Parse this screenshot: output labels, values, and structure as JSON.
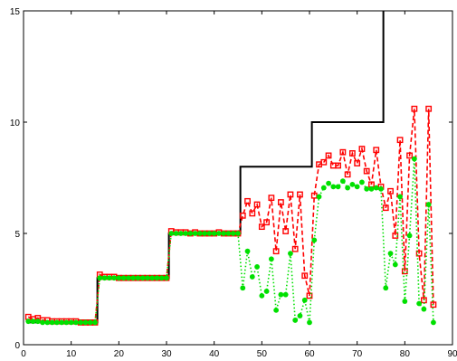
{
  "chart_data": {
    "type": "line",
    "title": "",
    "xlabel": "",
    "ylabel": "",
    "xlim": [
      0,
      90
    ],
    "ylim": [
      0,
      15
    ],
    "grid": false,
    "legend": "none",
    "x_ticks": [
      "0",
      "10",
      "20",
      "30",
      "40",
      "50",
      "60",
      "70",
      "80",
      "90"
    ],
    "y_ticks": [
      "0",
      "5",
      "10",
      "15"
    ],
    "series": [
      {
        "style": "solid",
        "color": "#000000",
        "marker": "none",
        "points": [
          [
            1,
            1
          ],
          [
            15.5,
            1
          ],
          [
            15.5,
            3
          ],
          [
            30.5,
            3
          ],
          [
            30.5,
            5
          ],
          [
            45.5,
            5
          ],
          [
            45.5,
            8
          ],
          [
            60.5,
            8
          ],
          [
            60.5,
            10
          ],
          [
            75.5,
            10
          ],
          [
            75.5,
            15
          ]
        ]
      },
      {
        "style": "dashed",
        "color": "#ff0000",
        "marker": "square",
        "points": [
          [
            1,
            1.25
          ],
          [
            2,
            1.15
          ],
          [
            3,
            1.2
          ],
          [
            4,
            1.1
          ],
          [
            5,
            1.1
          ],
          [
            6,
            1.05
          ],
          [
            7,
            1.05
          ],
          [
            8,
            1.05
          ],
          [
            9,
            1.05
          ],
          [
            10,
            1.05
          ],
          [
            11,
            1.05
          ],
          [
            12,
            1.0
          ],
          [
            13,
            1.0
          ],
          [
            14,
            1.0
          ],
          [
            15,
            1.0
          ],
          [
            16,
            3.15
          ],
          [
            17,
            3.05
          ],
          [
            18,
            3.05
          ],
          [
            19,
            3.05
          ],
          [
            20,
            3.0
          ],
          [
            21,
            3.0
          ],
          [
            22,
            3.0
          ],
          [
            23,
            3.0
          ],
          [
            24,
            3.0
          ],
          [
            25,
            3.0
          ],
          [
            26,
            3.0
          ],
          [
            27,
            3.0
          ],
          [
            28,
            3.0
          ],
          [
            29,
            3.0
          ],
          [
            30,
            3.0
          ],
          [
            31,
            5.1
          ],
          [
            32,
            5.05
          ],
          [
            33,
            5.05
          ],
          [
            34,
            5.05
          ],
          [
            35,
            5.0
          ],
          [
            36,
            5.05
          ],
          [
            37,
            5.0
          ],
          [
            38,
            5.0
          ],
          [
            39,
            5.0
          ],
          [
            40,
            5.0
          ],
          [
            41,
            5.05
          ],
          [
            42,
            5.0
          ],
          [
            43,
            5.0
          ],
          [
            44,
            5.0
          ],
          [
            45,
            5.0
          ],
          [
            46,
            5.8
          ],
          [
            47,
            6.45
          ],
          [
            48,
            5.9
          ],
          [
            49,
            6.3
          ],
          [
            50,
            5.3
          ],
          [
            51,
            5.5
          ],
          [
            52,
            6.6
          ],
          [
            53,
            4.2
          ],
          [
            54,
            6.4
          ],
          [
            55,
            5.1
          ],
          [
            56,
            6.75
          ],
          [
            57,
            4.3
          ],
          [
            58,
            6.75
          ],
          [
            59,
            3.1
          ],
          [
            60,
            2.2
          ],
          [
            61,
            6.7
          ],
          [
            62,
            8.1
          ],
          [
            63,
            8.2
          ],
          [
            64,
            8.5
          ],
          [
            65,
            8.05
          ],
          [
            66,
            8.05
          ],
          [
            67,
            8.65
          ],
          [
            68,
            7.65
          ],
          [
            69,
            8.6
          ],
          [
            70,
            8.15
          ],
          [
            71,
            8.8
          ],
          [
            72,
            7.8
          ],
          [
            73,
            7.2
          ],
          [
            74,
            8.75
          ],
          [
            75,
            7.1
          ],
          [
            76,
            6.15
          ],
          [
            77,
            6.9
          ],
          [
            78,
            4.9
          ],
          [
            79,
            9.2
          ],
          [
            80,
            3.3
          ],
          [
            81,
            8.5
          ],
          [
            82,
            10.6
          ],
          [
            83,
            4.1
          ],
          [
            84,
            2.0
          ],
          [
            85,
            10.6
          ],
          [
            86,
            1.8
          ]
        ]
      },
      {
        "style": "dotted",
        "color": "#00e000",
        "marker": "circle",
        "points": [
          [
            1,
            1.05
          ],
          [
            2,
            1.05
          ],
          [
            3,
            1.05
          ],
          [
            4,
            1.0
          ],
          [
            5,
            1.0
          ],
          [
            6,
            1.0
          ],
          [
            7,
            1.0
          ],
          [
            8,
            1.0
          ],
          [
            9,
            1.0
          ],
          [
            10,
            1.0
          ],
          [
            11,
            1.0
          ],
          [
            12,
            1.0
          ],
          [
            13,
            1.0
          ],
          [
            14,
            1.0
          ],
          [
            15,
            1.0
          ],
          [
            16,
            3.0
          ],
          [
            17,
            3.0
          ],
          [
            18,
            3.0
          ],
          [
            19,
            3.0
          ],
          [
            20,
            3.0
          ],
          [
            21,
            3.0
          ],
          [
            22,
            3.0
          ],
          [
            23,
            3.0
          ],
          [
            24,
            3.0
          ],
          [
            25,
            3.0
          ],
          [
            26,
            3.0
          ],
          [
            27,
            3.0
          ],
          [
            28,
            3.0
          ],
          [
            29,
            3.0
          ],
          [
            30,
            3.0
          ],
          [
            31,
            5.0
          ],
          [
            32,
            5.0
          ],
          [
            33,
            5.0
          ],
          [
            34,
            5.0
          ],
          [
            35,
            5.0
          ],
          [
            36,
            5.0
          ],
          [
            37,
            5.0
          ],
          [
            38,
            5.0
          ],
          [
            39,
            5.0
          ],
          [
            40,
            5.0
          ],
          [
            41,
            5.0
          ],
          [
            42,
            5.0
          ],
          [
            43,
            5.0
          ],
          [
            44,
            5.0
          ],
          [
            45,
            5.0
          ],
          [
            46,
            2.55
          ],
          [
            47,
            4.2
          ],
          [
            48,
            3.05
          ],
          [
            49,
            3.5
          ],
          [
            50,
            2.2
          ],
          [
            51,
            2.4
          ],
          [
            52,
            3.85
          ],
          [
            53,
            1.55
          ],
          [
            54,
            2.25
          ],
          [
            55,
            2.25
          ],
          [
            56,
            4.1
          ],
          [
            57,
            1.1
          ],
          [
            58,
            1.3
          ],
          [
            59,
            2.0
          ],
          [
            60,
            1.0
          ],
          [
            61,
            4.7
          ],
          [
            62,
            6.65
          ],
          [
            63,
            7.05
          ],
          [
            64,
            7.25
          ],
          [
            65,
            7.1
          ],
          [
            66,
            7.1
          ],
          [
            67,
            7.35
          ],
          [
            68,
            7.05
          ],
          [
            69,
            7.2
          ],
          [
            70,
            7.1
          ],
          [
            71,
            7.3
          ],
          [
            72,
            7.0
          ],
          [
            73,
            7.0
          ],
          [
            74,
            7.05
          ],
          [
            75,
            7.0
          ],
          [
            76,
            2.55
          ],
          [
            77,
            4.1
          ],
          [
            78,
            3.6
          ],
          [
            79,
            6.65
          ],
          [
            80,
            1.95
          ],
          [
            81,
            4.9
          ],
          [
            82,
            8.35
          ],
          [
            83,
            1.85
          ],
          [
            84,
            1.6
          ],
          [
            85,
            6.3
          ],
          [
            86,
            1.0
          ]
        ]
      }
    ]
  }
}
